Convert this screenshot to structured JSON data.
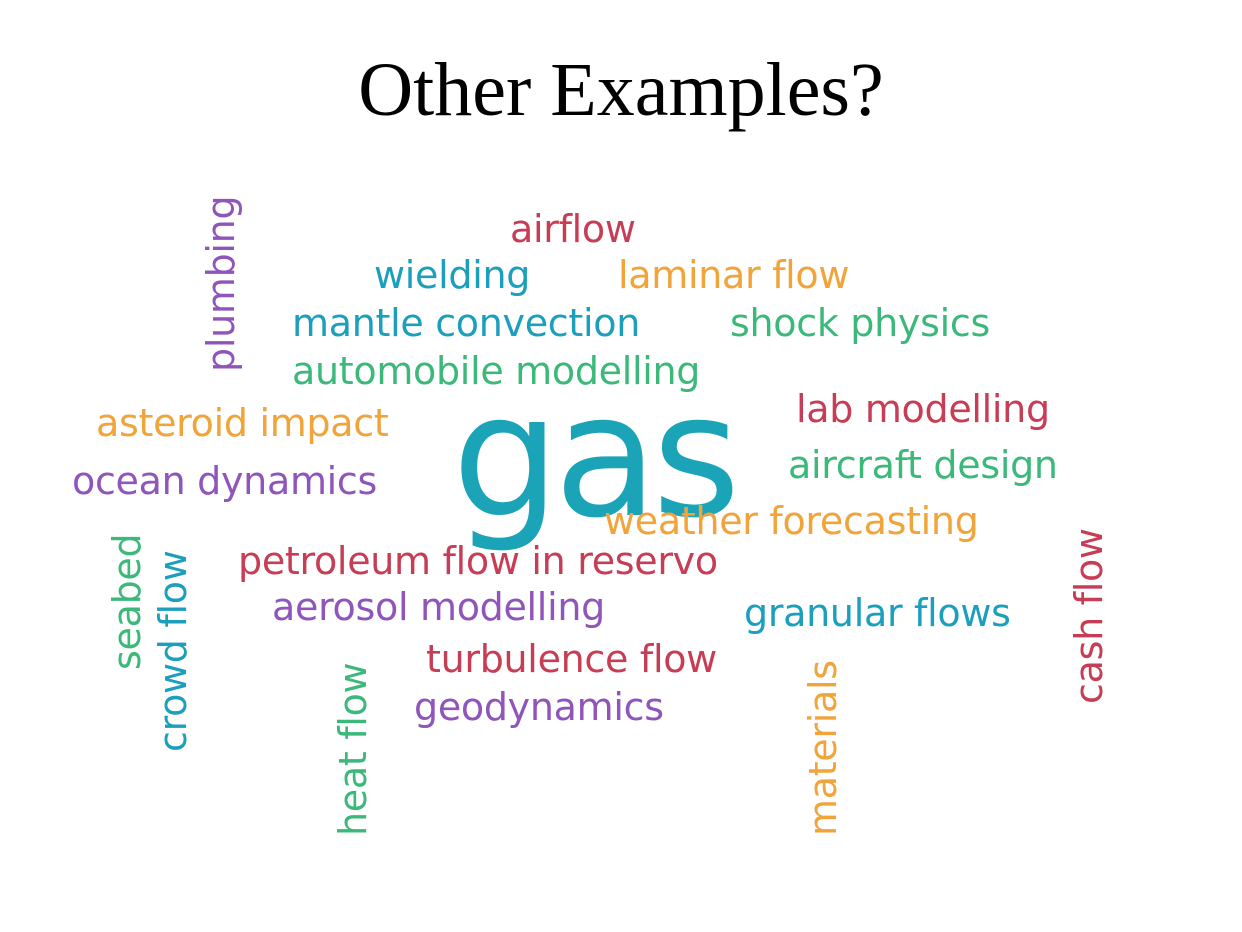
{
  "slide": {
    "title": "Other Examples?"
  },
  "colors": {
    "red": "#c63d55",
    "blue": "#1c9fbd",
    "orange": "#f0a43a",
    "green": "#3cb97a",
    "purple": "#8f55bb",
    "teal": "#1ba4b8"
  },
  "wordcloud": {
    "words": [
      {
        "text": "gas",
        "color": "teal"
      },
      {
        "text": "airflow",
        "color": "red"
      },
      {
        "text": "wielding",
        "color": "blue"
      },
      {
        "text": "laminar flow",
        "color": "orange"
      },
      {
        "text": "mantle convection",
        "color": "blue"
      },
      {
        "text": "shock physics",
        "color": "green"
      },
      {
        "text": "automobile modelling",
        "color": "green"
      },
      {
        "text": "lab modelling",
        "color": "red"
      },
      {
        "text": "asteroid impact",
        "color": "orange"
      },
      {
        "text": "aircraft design",
        "color": "green"
      },
      {
        "text": "ocean dynamics",
        "color": "purple"
      },
      {
        "text": "weather forecasting",
        "color": "orange"
      },
      {
        "text": "petroleum flow in reservo",
        "color": "red"
      },
      {
        "text": "aerosol modelling",
        "color": "purple"
      },
      {
        "text": "granular flows",
        "color": "blue"
      },
      {
        "text": "turbulence flow",
        "color": "red"
      },
      {
        "text": "geodynamics",
        "color": "purple"
      },
      {
        "text": "plumbing",
        "color": "purple"
      },
      {
        "text": "seabed",
        "color": "green"
      },
      {
        "text": "crowd flow",
        "color": "blue"
      },
      {
        "text": "heat flow",
        "color": "green"
      },
      {
        "text": "materials",
        "color": "orange"
      },
      {
        "text": "cash flow",
        "color": "red"
      }
    ]
  }
}
